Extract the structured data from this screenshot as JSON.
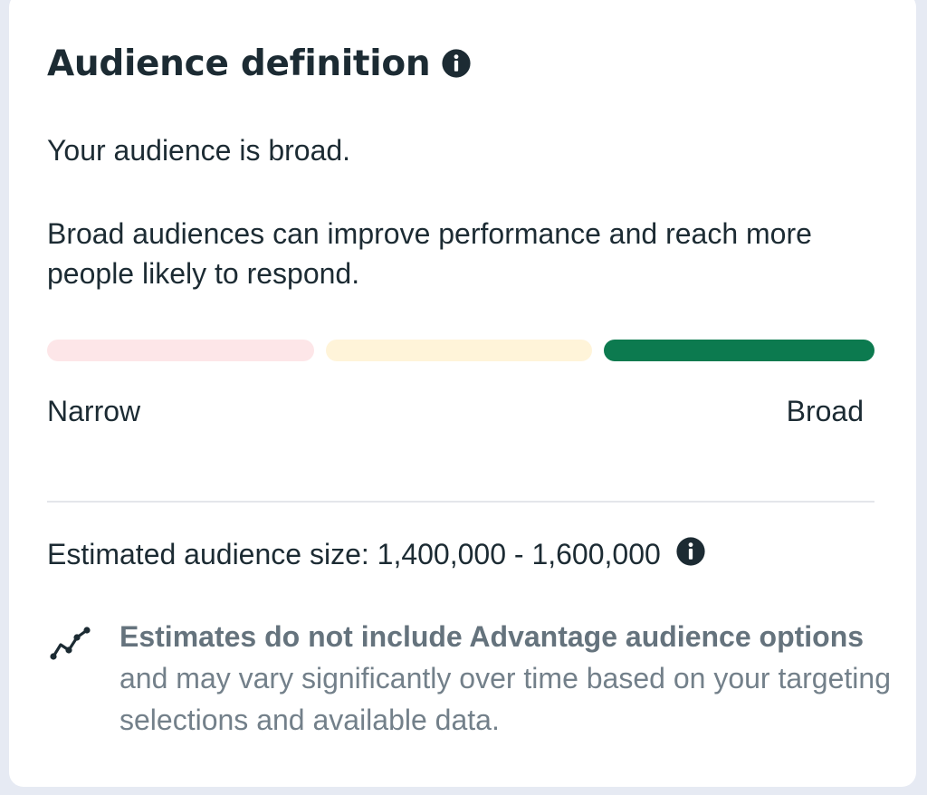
{
  "colors": {
    "page_background": "#e6eaf3",
    "card_background": "#ffffff",
    "text_primary": "#1c2b33",
    "text_secondary": "#73808a",
    "meter_narrow": "#fde6e8",
    "meter_mid": "#fff4d9",
    "meter_broad": "#0c7a4f"
  },
  "panel": {
    "title": "Audience definition",
    "title_icon": "info-icon",
    "status_text": "Your audience is broad.",
    "description": "Broad audiences can improve performance and reach more people likely to respond."
  },
  "meter": {
    "segments": [
      "Narrow",
      "Mid",
      "Broad"
    ],
    "active_segment": "Broad",
    "left_label": "Narrow",
    "right_label": "Broad"
  },
  "estimate": {
    "label": "Estimated audience size:",
    "value": "1,400,000 - 1,600,000",
    "icon": "info-icon"
  },
  "note": {
    "icon": "trend-line-icon",
    "bold_text": "Estimates do not include Advantage audience options",
    "text": " and may vary significantly over time based on your targeting selections and available data."
  }
}
